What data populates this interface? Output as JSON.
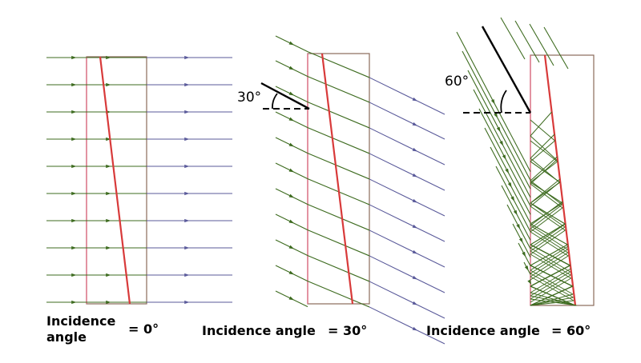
{
  "panels": [
    {
      "id": "panel-0deg",
      "incidence_angle_deg": 0,
      "caption_line1": "Incidence",
      "caption_line2": "angle",
      "caption_value": "= 0°",
      "angle_label": ""
    },
    {
      "id": "panel-30deg",
      "incidence_angle_deg": 30,
      "caption": "Incidence angle",
      "caption_value": "= 30°",
      "angle_label": "30°"
    },
    {
      "id": "panel-60deg",
      "incidence_angle_deg": 60,
      "caption": "Incidence angle",
      "caption_value": "= 60°",
      "angle_label": "60°"
    }
  ],
  "colors": {
    "incident_ray": "#3d6b1f",
    "transmitted_ray": "#5a5a9a",
    "slab_border": "#8a6a5a",
    "boundary": "#e0607a",
    "refracting_line": "#d83a3a",
    "angle_marker": "#000000"
  }
}
